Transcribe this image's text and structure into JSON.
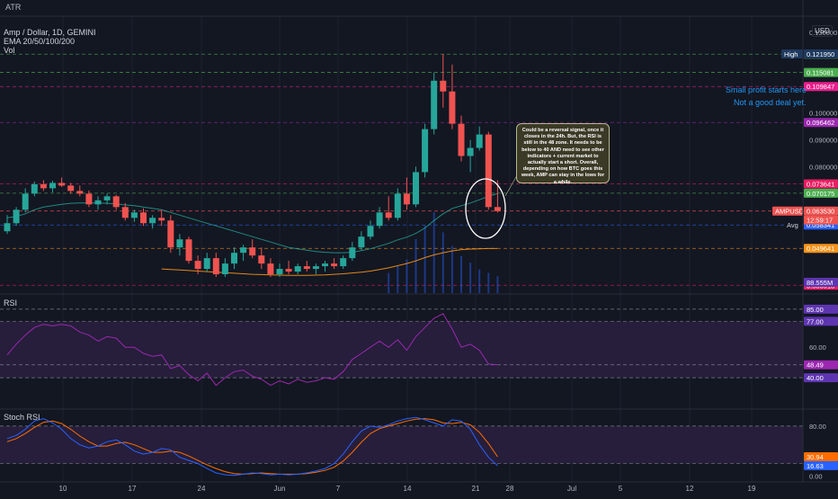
{
  "top_bar": {
    "title": "ATR"
  },
  "header": {
    "symbol_line": "Amp / Dollar, 1D, GEMINI",
    "ema_line": "EMA 20/50/100/200",
    "vol_line": "Vol",
    "currency": "USD"
  },
  "annotations": {
    "note": "Could be a reversal signal, once it closes in the 24h. But, the RSI is still in the 48 zone. It needs to be below to 40 AND need to see other indicators + current market to actually start a short. Overall, depending on how BTC goes this week, AMP can stay in the lows for a while.",
    "label_profit": "Small profit starts here",
    "label_deal": "Not a good deal yet."
  },
  "colors": {
    "background": "#131722",
    "up": "#26a69a",
    "down": "#ef5350",
    "ema20": "#26a69a",
    "ema50": "#f7931a",
    "rsi": "#9c27b0",
    "stoch_k": "#2962ff",
    "stoch_d": "#ff6d00",
    "band": "#2a2040"
  },
  "chart_data": [
    {
      "type": "candlestick",
      "title": "Amp / Dollar, 1D, GEMINI",
      "x_ticks": [
        "10",
        "17",
        "24",
        "Jun",
        "7",
        "14",
        "21",
        "28",
        "Jul",
        "5",
        "12",
        "19"
      ],
      "y_ticks": [
        "0.130000",
        "0.100000",
        "0.090000",
        "0.080000",
        "0.060000"
      ],
      "ylim": [
        0.033,
        0.134
      ],
      "candles": [
        [
          0.056,
          0.062,
          0.055,
          0.059
        ],
        [
          0.059,
          0.065,
          0.058,
          0.064
        ],
        [
          0.064,
          0.072,
          0.063,
          0.07
        ],
        [
          0.07,
          0.0745,
          0.069,
          0.0735
        ],
        [
          0.0735,
          0.075,
          0.071,
          0.072
        ],
        [
          0.072,
          0.0748,
          0.0705,
          0.074
        ],
        [
          0.074,
          0.076,
          0.0725,
          0.073
        ],
        [
          0.073,
          0.074,
          0.07,
          0.071
        ],
        [
          0.071,
          0.073,
          0.069,
          0.07
        ],
        [
          0.07,
          0.0712,
          0.065,
          0.066
        ],
        [
          0.066,
          0.069,
          0.064,
          0.0675
        ],
        [
          0.0675,
          0.07,
          0.066,
          0.069
        ],
        [
          0.069,
          0.0695,
          0.064,
          0.065
        ],
        [
          0.065,
          0.0665,
          0.06,
          0.061
        ],
        [
          0.061,
          0.064,
          0.0595,
          0.063
        ],
        [
          0.063,
          0.0645,
          0.058,
          0.059
        ],
        [
          0.059,
          0.062,
          0.057,
          0.061
        ],
        [
          0.061,
          0.064,
          0.058,
          0.06
        ],
        [
          0.06,
          0.062,
          0.048,
          0.05
        ],
        [
          0.05,
          0.055,
          0.047,
          0.053
        ],
        [
          0.053,
          0.054,
          0.044,
          0.045
        ],
        [
          0.045,
          0.047,
          0.04,
          0.042
        ],
        [
          0.042,
          0.048,
          0.041,
          0.046
        ],
        [
          0.046,
          0.048,
          0.039,
          0.04
        ],
        [
          0.04,
          0.046,
          0.039,
          0.044
        ],
        [
          0.044,
          0.05,
          0.042,
          0.048
        ],
        [
          0.048,
          0.051,
          0.045,
          0.05
        ],
        [
          0.05,
          0.053,
          0.046,
          0.047
        ],
        [
          0.047,
          0.05,
          0.042,
          0.044
        ],
        [
          0.044,
          0.046,
          0.039,
          0.04
        ],
        [
          0.04,
          0.044,
          0.039,
          0.042
        ],
        [
          0.042,
          0.045,
          0.04,
          0.041
        ],
        [
          0.041,
          0.044,
          0.04,
          0.043
        ],
        [
          0.043,
          0.045,
          0.041,
          0.042
        ],
        [
          0.042,
          0.044,
          0.04,
          0.043
        ],
        [
          0.043,
          0.045,
          0.041,
          0.044
        ],
        [
          0.044,
          0.046,
          0.042,
          0.043
        ],
        [
          0.043,
          0.047,
          0.042,
          0.046
        ],
        [
          0.046,
          0.052,
          0.045,
          0.05
        ],
        [
          0.05,
          0.056,
          0.049,
          0.054
        ],
        [
          0.054,
          0.06,
          0.053,
          0.058
        ],
        [
          0.058,
          0.065,
          0.057,
          0.063
        ],
        [
          0.063,
          0.069,
          0.06,
          0.061
        ],
        [
          0.061,
          0.072,
          0.06,
          0.07
        ],
        [
          0.07,
          0.076,
          0.064,
          0.066
        ],
        [
          0.066,
          0.08,
          0.065,
          0.078
        ],
        [
          0.078,
          0.096,
          0.076,
          0.094
        ],
        [
          0.094,
          0.115,
          0.092,
          0.112
        ],
        [
          0.112,
          0.1219,
          0.102,
          0.108
        ],
        [
          0.108,
          0.118,
          0.094,
          0.096
        ],
        [
          0.096,
          0.099,
          0.082,
          0.084
        ],
        [
          0.084,
          0.09,
          0.078,
          0.087
        ],
        [
          0.087,
          0.095,
          0.086,
          0.092
        ],
        [
          0.092,
          0.093,
          0.064,
          0.065
        ],
        [
          0.065,
          0.075,
          0.063,
          0.0635
        ]
      ],
      "ema20": [
        0.061,
        0.0615,
        0.0625,
        0.064,
        0.065,
        0.0655,
        0.066,
        0.0664,
        0.0665,
        0.0665,
        0.0665,
        0.0664,
        0.0662,
        0.0658,
        0.0655,
        0.065,
        0.0645,
        0.064,
        0.063,
        0.062,
        0.061,
        0.06,
        0.059,
        0.058,
        0.057,
        0.056,
        0.055,
        0.054,
        0.053,
        0.052,
        0.051,
        0.05,
        0.0495,
        0.049,
        0.0485,
        0.0482,
        0.048,
        0.048,
        0.0482,
        0.0488,
        0.0495,
        0.0505,
        0.0515,
        0.0528,
        0.0538,
        0.0552,
        0.0572,
        0.06,
        0.0625,
        0.0645,
        0.0655,
        0.0665,
        0.0677,
        0.069,
        0.0701
      ],
      "ema50_start_index": 17,
      "ema50": [
        0.042,
        0.0418,
        0.0416,
        0.0414,
        0.0412,
        0.041,
        0.0408,
        0.0406,
        0.0404,
        0.0402,
        0.04,
        0.0399,
        0.0398,
        0.0397,
        0.0396,
        0.0396,
        0.0396,
        0.0397,
        0.0398,
        0.04,
        0.0402,
        0.0405,
        0.0408,
        0.0412,
        0.0418,
        0.0424,
        0.0432,
        0.044,
        0.045,
        0.0462,
        0.0472,
        0.048,
        0.0487,
        0.0492,
        0.0494,
        0.0495,
        0.0496,
        0.0496
      ],
      "volume": [
        0,
        0,
        0,
        0,
        0,
        0,
        0,
        0,
        0,
        0,
        0,
        0,
        0,
        0,
        0,
        0,
        0,
        0,
        0,
        0,
        0,
        0,
        0,
        0,
        0,
        0,
        0,
        0,
        0,
        0,
        0,
        0,
        0,
        0,
        0,
        0,
        0,
        0,
        0,
        0,
        0,
        0,
        30,
        40,
        50,
        80,
        100,
        120,
        90,
        70,
        55,
        45,
        35,
        30,
        25
      ],
      "levels": [
        {
          "value": 0.121879,
          "label": "0.121879",
          "color": "#4caf50"
        },
        {
          "value": 0.115081,
          "label": "0.115081",
          "color": "#4caf50"
        },
        {
          "value": 0.109847,
          "label": "0.109847",
          "color": "#e91e8c"
        },
        {
          "value": 0.096462,
          "label": "0.096462",
          "color": "#9c27b0"
        },
        {
          "value": 0.073641,
          "label": "0.073641",
          "color": "#e91e63"
        },
        {
          "value": 0.070175,
          "label": "0.070175",
          "color": "#4caf50"
        },
        {
          "value": 0.06353,
          "label": "0.063530",
          "color": "#ef5350"
        },
        {
          "value": 0.058341,
          "label": "0.058341",
          "color": "#2962ff"
        },
        {
          "value": 0.049641,
          "label": "0.049641",
          "color": "#f7931a"
        },
        {
          "value": 0.035918,
          "label": "0.035918",
          "color": "#e91e63"
        }
      ],
      "price_tags": {
        "high": "High",
        "high_value": "0.121950",
        "symbol": "AMPUSD",
        "countdown": "12:59:17",
        "avg": "Avg",
        "volume_value": "88.555M"
      }
    },
    {
      "type": "line",
      "title": "RSI",
      "y_ticks": [
        "60.00"
      ],
      "ylim": [
        20,
        92
      ],
      "levels": [
        {
          "value": 85,
          "label": "85.00",
          "color": "#5e35b1"
        },
        {
          "value": 77,
          "label": "77.00",
          "color": "#5e35b1"
        },
        {
          "value": 48.49,
          "label": "48.49",
          "color": "#9c27b0"
        },
        {
          "value": 40,
          "label": "40.00",
          "color": "#5e35b1"
        }
      ],
      "band": [
        40,
        77
      ],
      "values": [
        55,
        62,
        68,
        73,
        75,
        74,
        75,
        74,
        70,
        68,
        64,
        67,
        66,
        60,
        60,
        56,
        54,
        55,
        46,
        48,
        42,
        38,
        43,
        35,
        40,
        44,
        45,
        41,
        39,
        35,
        38,
        36,
        39,
        37,
        38,
        40,
        39,
        44,
        52,
        56,
        60,
        64,
        60,
        65,
        58,
        67,
        73,
        79,
        82,
        72,
        60,
        62,
        58,
        49,
        48.49
      ]
    },
    {
      "type": "line",
      "title": "Stoch RSI",
      "y_ticks": [
        "80.00",
        "0.00"
      ],
      "ylim": [
        -8,
        100
      ],
      "levels": [
        {
          "value": 30.94,
          "label": "30.94",
          "color": "#ff6d00"
        },
        {
          "value": 16.63,
          "label": "16.63",
          "color": "#2962ff"
        }
      ],
      "band": [
        20,
        80
      ],
      "series": [
        {
          "name": "K",
          "values": [
            60,
            65,
            75,
            88,
            92,
            85,
            75,
            60,
            50,
            45,
            48,
            55,
            58,
            50,
            40,
            35,
            38,
            44,
            42,
            30,
            25,
            20,
            12,
            5,
            2,
            1,
            3,
            5,
            4,
            2,
            3,
            2,
            3,
            5,
            8,
            12,
            20,
            35,
            55,
            72,
            80,
            78,
            82,
            88,
            92,
            94,
            90,
            85,
            80,
            90,
            88,
            75,
            50,
            30,
            16.63
          ]
        },
        {
          "name": "D",
          "values": [
            55,
            60,
            68,
            78,
            86,
            88,
            84,
            75,
            64,
            55,
            48,
            48,
            52,
            54,
            50,
            44,
            38,
            38,
            40,
            38,
            32,
            25,
            18,
            12,
            7,
            4,
            3,
            4,
            5,
            4,
            3,
            3,
            3,
            4,
            6,
            9,
            14,
            24,
            38,
            54,
            68,
            76,
            80,
            84,
            88,
            91,
            92,
            90,
            85,
            84,
            86,
            82,
            70,
            52,
            30.94
          ]
        }
      ]
    }
  ]
}
